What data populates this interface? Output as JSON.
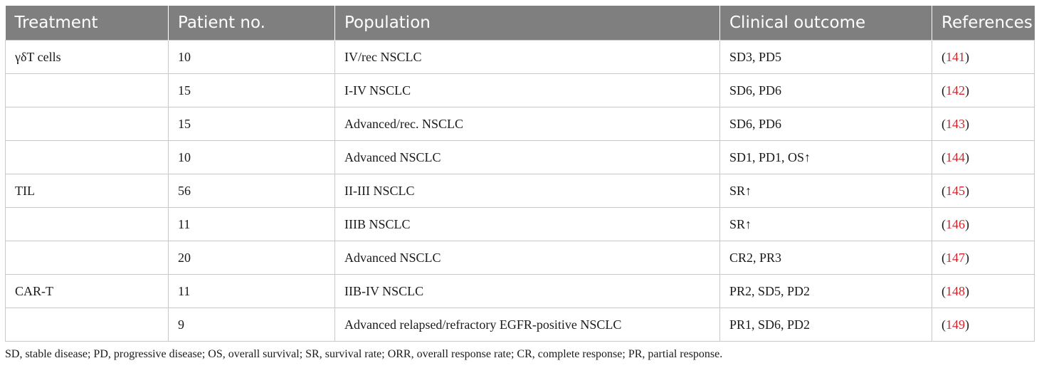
{
  "table": {
    "headers": [
      "Treatment",
      "Patient no.",
      "Population",
      "Clinical outcome",
      "References"
    ],
    "rows": [
      {
        "treatment": "γδT cells",
        "patient_no": "10",
        "population": "IV/rec NSCLC",
        "outcome": "SD3, PD5",
        "ref": "141"
      },
      {
        "treatment": "",
        "patient_no": "15",
        "population": "I-IV NSCLC",
        "outcome": "SD6, PD6",
        "ref": "142"
      },
      {
        "treatment": "",
        "patient_no": "15",
        "population": "Advanced/rec. NSCLC",
        "outcome": "SD6, PD6",
        "ref": "143"
      },
      {
        "treatment": "",
        "patient_no": "10",
        "population": "Advanced NSCLC",
        "outcome": "SD1, PD1, OS↑",
        "ref": "144"
      },
      {
        "treatment": "TIL",
        "patient_no": "56",
        "population": "II-III NSCLC",
        "outcome": "SR↑",
        "ref": "145"
      },
      {
        "treatment": "",
        "patient_no": "11",
        "population": "IIIB NSCLC",
        "outcome": "SR↑",
        "ref": "146"
      },
      {
        "treatment": "",
        "patient_no": "20",
        "population": "Advanced NSCLC",
        "outcome": "CR2, PR3",
        "ref": "147"
      },
      {
        "treatment": "CAR-T",
        "patient_no": "11",
        "population": "IIB-IV NSCLC",
        "outcome": "PR2, SD5, PD2",
        "ref": "148"
      },
      {
        "treatment": "",
        "patient_no": "9",
        "population": "Advanced relapsed/refractory EGFR-positive NSCLC",
        "outcome": "PR1, SD6, PD2",
        "ref": "149"
      }
    ]
  },
  "footnote": "SD, stable disease; PD, progressive disease; OS, overall survival; SR, survival rate; ORR, overall response rate; CR, complete response; PR, partial response.",
  "colors": {
    "header_bg": "#7f7f7f",
    "header_text": "#ffffff",
    "ref_link": "#d3242b",
    "grid": "#c8c8c8"
  }
}
